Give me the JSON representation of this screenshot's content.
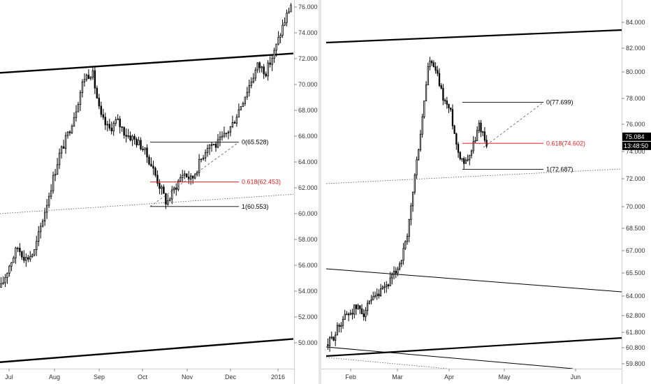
{
  "chart_data": [
    {
      "type": "candlestick",
      "panel": "left",
      "y_axis_ticks": [
        "76.000",
        "74.000",
        "72.000",
        "70.000",
        "68.000",
        "66.000",
        "64.000",
        "62.000",
        "60.000",
        "58.000",
        "56.000",
        "54.000",
        "52.000",
        "50.000"
      ],
      "x_axis_ticks": [
        "Jul",
        "Aug",
        "Sep",
        "Oct",
        "Nov",
        "Dec",
        "2016"
      ],
      "ylim": [
        48.4,
        76.6
      ],
      "grid": false,
      "series_anchor_closes": [
        54.3,
        56.0,
        57.4,
        56.5,
        57.0,
        59.5,
        62.0,
        64.5,
        66.0,
        68.0,
        70.5,
        71.0,
        67.5,
        66.5,
        67.2,
        66.2,
        65.8,
        65.2,
        64.0,
        62.4,
        60.8,
        62.0,
        63.2,
        62.6,
        64.0,
        65.4,
        65.3,
        66.0,
        67.0,
        68.5,
        70.0,
        71.5,
        71.0,
        72.5,
        74.5,
        76.2
      ],
      "fibonacci": [
        {
          "ratio": "0",
          "price": 65.528,
          "label": "0(65.528)",
          "color": "#000000"
        },
        {
          "ratio": "0.618",
          "price": 62.453,
          "label": "0.618(62.453)",
          "color": "#e02020"
        },
        {
          "ratio": "1",
          "price": 60.553,
          "label": "1(60.553)",
          "color": "#000000"
        }
      ],
      "trendlines": [
        {
          "style": "thick",
          "from": [
            0,
            70.9
          ],
          "to": [
            420,
            72.4
          ]
        },
        {
          "style": "thick",
          "from": [
            0,
            48.5
          ],
          "to": [
            420,
            50.3
          ]
        },
        {
          "style": "dotted",
          "from": [
            0,
            60.0
          ],
          "to": [
            420,
            61.5
          ]
        }
      ]
    },
    {
      "type": "candlestick",
      "panel": "right",
      "y_axis_ticks": [
        "84.000",
        "82.000",
        "80.000",
        "78.000",
        "76.000",
        "74.000",
        "72.000",
        "70.000",
        "68.500",
        "67.000",
        "65.500",
        "64.000",
        "62.800",
        "61.800",
        "60.800",
        "59.800"
      ],
      "x_axis_ticks": [
        "Feb",
        "Mar",
        "Apr",
        "May",
        "Jun"
      ],
      "series_anchor_closes": [
        61.0,
        61.7,
        62.6,
        63.0,
        63.3,
        63.0,
        63.6,
        64.0,
        64.6,
        65.2,
        66.2,
        67.8,
        72.0,
        76.0,
        81.0,
        80.0,
        78.0,
        77.0,
        74.0,
        73.2,
        74.2,
        76.0,
        74.6
      ],
      "last_price": {
        "value": "75.084",
        "color": "#000000"
      },
      "countdown": {
        "value": "13:48:50",
        "color": "#000000"
      },
      "fibonacci": [
        {
          "ratio": "0",
          "price": 77.699,
          "label": "0(77.699)",
          "color": "#000000"
        },
        {
          "ratio": "0.618",
          "price": 74.602,
          "label": "0.618(74.602)",
          "color": "#e02020"
        },
        {
          "ratio": "1",
          "price": 72.687,
          "label": "1(72.687)",
          "color": "#000000"
        }
      ]
    }
  ]
}
